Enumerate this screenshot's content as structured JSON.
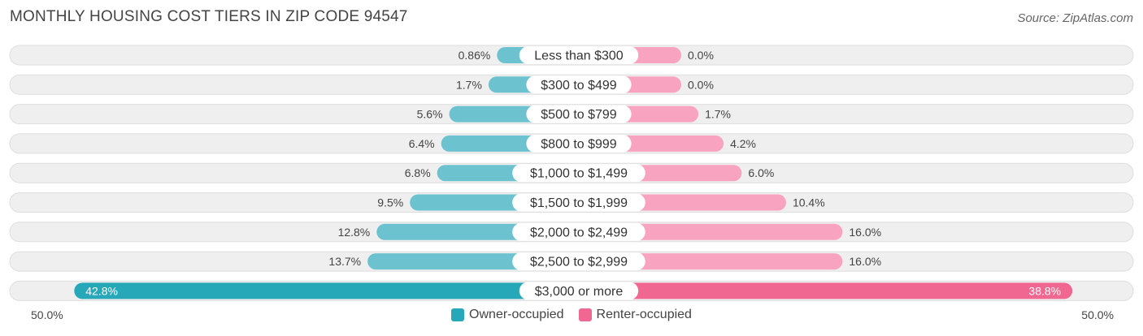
{
  "header": {
    "title": "MONTHLY HOUSING COST TIERS IN ZIP CODE 94547",
    "source": "Source: ZipAtlas.com"
  },
  "colors": {
    "owner": "#6cc3cf",
    "owner_strong": "#27a8b8",
    "renter": "#f8a4c0",
    "renter_strong": "#f06891",
    "track": "#efefef"
  },
  "chart_data": {
    "type": "bar",
    "orientation": "horizontal-diverging",
    "categories": [
      "Less than $300",
      "$300 to $499",
      "$500 to $799",
      "$800 to $999",
      "$1,000 to $1,499",
      "$1,500 to $1,999",
      "$2,000 to $2,499",
      "$2,500 to $2,999",
      "$3,000 or more"
    ],
    "series": [
      {
        "name": "Owner-occupied",
        "values": [
          0.86,
          1.7,
          5.6,
          6.4,
          6.8,
          9.5,
          12.8,
          13.7,
          42.8
        ],
        "labels": [
          "0.86%",
          "1.7%",
          "5.6%",
          "6.4%",
          "6.8%",
          "9.5%",
          "12.8%",
          "13.7%",
          "42.8%"
        ]
      },
      {
        "name": "Renter-occupied",
        "values": [
          0.0,
          0.0,
          1.7,
          4.2,
          6.0,
          10.4,
          16.0,
          16.0,
          38.8
        ],
        "labels": [
          "0.0%",
          "0.0%",
          "1.7%",
          "4.2%",
          "6.0%",
          "10.4%",
          "16.0%",
          "16.0%",
          "38.8%"
        ]
      }
    ],
    "xlim": [
      -50,
      50
    ],
    "axis_labels": {
      "left": "50.0%",
      "right": "50.0%"
    },
    "legend_placement": "bottom-center",
    "grid": false
  }
}
